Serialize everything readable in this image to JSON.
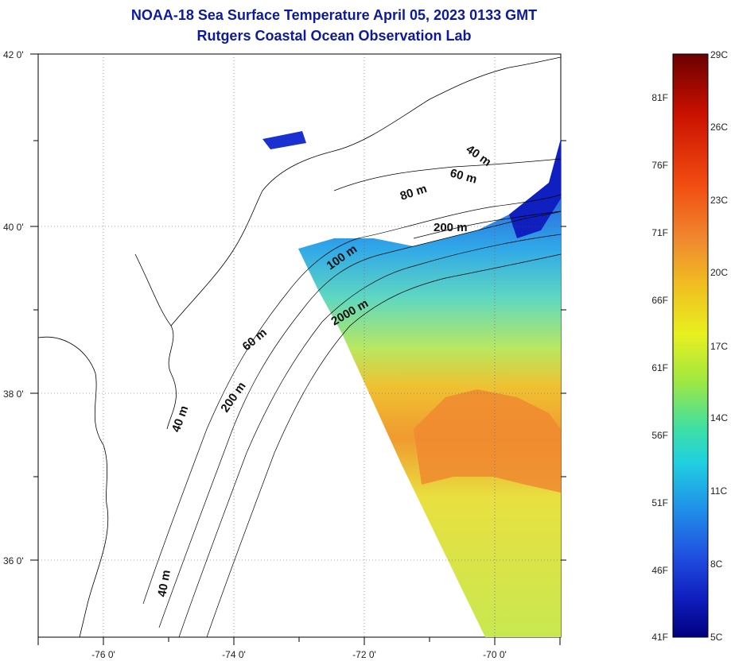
{
  "title": {
    "line1": "NOAA-18 Sea Surface Temperature April 05, 2023 0133 GMT",
    "line2": "Rutgers Coastal Ocean Observation Lab"
  },
  "map": {
    "lat_ticks": [
      "42 0'",
      "40 0'",
      "38 0'",
      "36 0'"
    ],
    "lon_ticks": [
      "-76 0'",
      "-74 0'",
      "-72 0'",
      "-70 0'"
    ],
    "contour_labels": [
      "40 m",
      "60 m",
      "80 m",
      "200 m",
      "100 m",
      "2000 m",
      "60 m",
      "200 m",
      "40 m",
      "40 m"
    ],
    "land_color": "#ffffff",
    "coast_line_color": "#000000"
  },
  "colorbar": {
    "celsius": [
      "29C",
      "26C",
      "23C",
      "20C",
      "17C",
      "14C",
      "11C",
      "8C",
      "5C"
    ],
    "fahrenheit": [
      "81F",
      "76F",
      "71F",
      "66F",
      "61F",
      "56F",
      "51F",
      "46F",
      "41F"
    ],
    "colors": [
      "#6b0000",
      "#c81000",
      "#f04010",
      "#f08030",
      "#f0c020",
      "#e8f020",
      "#a0e840",
      "#40e0a0",
      "#20d0e0",
      "#2090e8",
      "#2050e0",
      "#1020c0",
      "#000080"
    ]
  }
}
